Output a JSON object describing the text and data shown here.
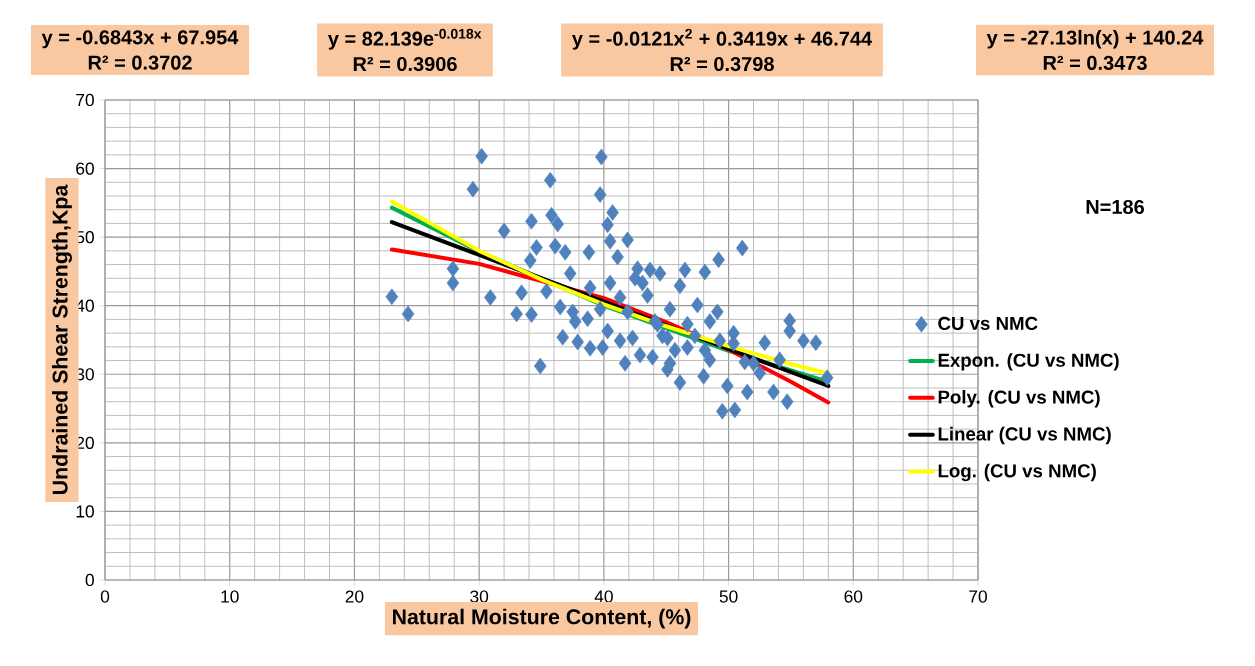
{
  "chart_data": {
    "type": "scatter",
    "xlabel": "Natural Moisture Content, (%)",
    "ylabel": "Undrained Shear Strength,Kpa",
    "xlim": [
      0,
      70
    ],
    "ylim": [
      0,
      70
    ],
    "xticks": [
      0,
      10,
      20,
      30,
      40,
      50,
      60,
      70
    ],
    "yticks": [
      0,
      10,
      20,
      30,
      40,
      50,
      60,
      70
    ],
    "grid": true,
    "legend": "right",
    "annotations": [
      "y = -0.6843x + 67.954",
      "R² = 0.3702",
      "y = 82.139e$^{-0.018x}$",
      "R² = 0.3906",
      "y = -0.0121x$^{2}$ + 0.3419x + 46.744",
      "R² = 0.3798",
      "y = -27.13ln(x) + 140.24",
      "R² = 0.3473",
      "N=186"
    ],
    "series": [
      {
        "name": "CU vs NMC",
        "marker": "diamond",
        "color": "#4f81bd",
        "x": [
          30.2,
          29.5,
          35.7,
          39.8,
          39.7,
          23.0,
          24.3,
          27.9,
          27.9,
          30.9,
          34.2,
          32.0,
          35.8,
          36.3,
          33.4,
          33.0,
          34.2,
          34.9,
          36.7,
          37.9,
          35.4,
          34.6,
          36.1,
          36.9,
          38.8,
          34.1,
          37.3,
          39.9,
          38.7,
          37.5,
          40.7,
          40.3,
          41.9,
          40.5,
          41.1,
          51.1,
          49.2,
          48.1,
          46.5,
          44.5,
          42.7,
          43.7,
          54.9,
          56.0,
          52.9,
          50.4,
          49.1,
          47.5,
          45.3,
          43.5,
          43.1,
          46.1,
          41.3,
          40.3,
          41.7,
          43.9,
          45.1,
          46.1,
          48.0,
          49.9,
          51.5,
          53.6,
          54.7,
          49.5,
          50.5,
          57.9,
          52.0,
          48.5,
          46.7,
          45.1,
          44.3,
          46.7,
          48.5,
          50.4,
          54.1,
          42.3,
          45.3,
          38.9,
          57.0,
          54.9,
          52.5,
          38.9,
          41.3,
          39.7,
          41.9,
          44.1,
          42.9,
          44.7,
          45.7,
          47.3,
          48.1,
          49.3,
          51.3,
          40.5,
          42.5,
          36.5,
          37.7
        ],
        "values": [
          61.8,
          57.0,
          58.3,
          61.7,
          56.2,
          41.3,
          38.8,
          45.4,
          43.3,
          41.2,
          52.3,
          50.9,
          53.2,
          51.9,
          41.9,
          38.8,
          38.7,
          31.2,
          35.4,
          34.7,
          42.1,
          48.5,
          48.7,
          47.8,
          47.8,
          46.6,
          44.7,
          33.9,
          38.1,
          39.1,
          53.6,
          51.8,
          49.6,
          49.4,
          47.1,
          48.4,
          46.7,
          44.9,
          45.2,
          44.7,
          45.4,
          45.2,
          37.8,
          34.9,
          34.6,
          36.0,
          39.1,
          40.1,
          39.5,
          41.5,
          43.3,
          42.9,
          34.9,
          36.3,
          31.6,
          32.5,
          30.7,
          28.8,
          29.7,
          28.3,
          27.4,
          27.4,
          26.0,
          24.6,
          24.8,
          29.5,
          31.6,
          32.1,
          33.9,
          35.3,
          37.3,
          37.3,
          37.7,
          34.5,
          32.1,
          35.3,
          31.6,
          33.8,
          34.6,
          36.3,
          30.2,
          42.6,
          41.2,
          39.5,
          39.1,
          37.7,
          32.8,
          35.6,
          33.5,
          35.6,
          33.5,
          34.9,
          31.8,
          43.3,
          44.0,
          39.8,
          37.7
        ]
      },
      {
        "name": "Expon. (CU vs NMC)",
        "type": "line",
        "color": "#00b050",
        "x": [
          23,
          30,
          40,
          50,
          58
        ],
        "values": [
          54.3,
          47.9,
          40.0,
          33.4,
          28.9
        ]
      },
      {
        "name": "Poly. (CU vs NMC)",
        "type": "line",
        "color": "#ff0000",
        "x": [
          23,
          30,
          40,
          45,
          50,
          55,
          58
        ],
        "values": [
          48.2,
          46.1,
          41.1,
          37.6,
          33.6,
          28.9,
          25.9
        ]
      },
      {
        "name": "Linear (CU vs NMC)",
        "type": "line",
        "color": "#000000",
        "x": [
          23,
          30,
          40,
          50,
          58
        ],
        "values": [
          52.2,
          47.4,
          40.6,
          33.7,
          28.3
        ]
      },
      {
        "name": "Log. (CU vs NMC)",
        "type": "line",
        "color": "#ffff00",
        "x": [
          23,
          30,
          35,
          40,
          45,
          50,
          55,
          58
        ],
        "values": [
          55.2,
          48.0,
          43.8,
          40.2,
          37.0,
          34.1,
          31.5,
          30.1
        ]
      }
    ]
  }
}
